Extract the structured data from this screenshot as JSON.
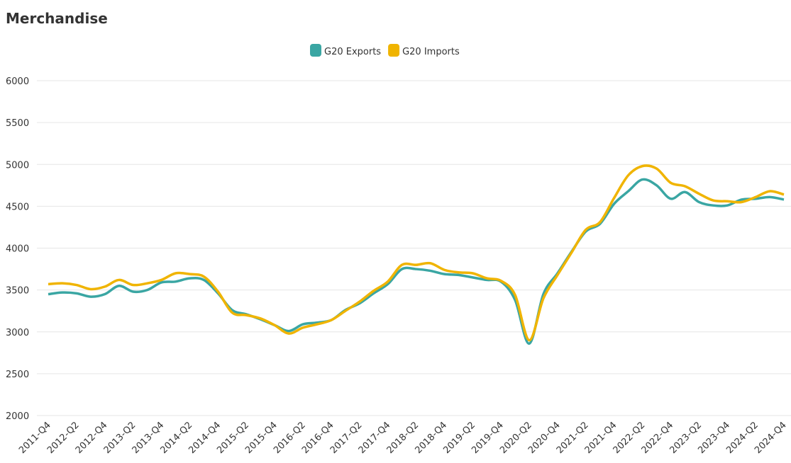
{
  "chart_data": {
    "type": "line",
    "title": "Merchandise",
    "categories": [
      "2011-Q4",
      null,
      "2012-Q2",
      null,
      "2012-Q4",
      null,
      "2013-Q2",
      null,
      "2013-Q4",
      null,
      "2014-Q2",
      null,
      "2014-Q4",
      null,
      "2015-Q2",
      null,
      "2015-Q4",
      null,
      "2016-Q2",
      null,
      "2016-Q4",
      null,
      "2017-Q2",
      null,
      "2017-Q4",
      null,
      "2018-Q2",
      null,
      "2018-Q4",
      null,
      "2019-Q2",
      null,
      "2019-Q4",
      null,
      "2020-Q2",
      null,
      "2020-Q4",
      null,
      "2021-Q2",
      null,
      "2021-Q4",
      null,
      "2022-Q2",
      null,
      "2022-Q4",
      null,
      "2023-Q2",
      null,
      "2023-Q4",
      null,
      "2024-Q2",
      null,
      "2024-Q4"
    ],
    "series": [
      {
        "name": "G20 Exports",
        "color": "#3aa6a3",
        "values": [
          3450,
          3470,
          3460,
          3420,
          3450,
          3550,
          3480,
          3500,
          3590,
          3600,
          3640,
          3620,
          3460,
          3260,
          3210,
          3150,
          3080,
          3010,
          3090,
          3110,
          3140,
          3260,
          3340,
          3460,
          3570,
          3750,
          3750,
          3730,
          3690,
          3680,
          3650,
          3620,
          3600,
          3380,
          2860,
          3450,
          3700,
          3960,
          4200,
          4290,
          4530,
          4680,
          4820,
          4750,
          4590,
          4670,
          4550,
          4510,
          4510,
          4580,
          4590,
          4610,
          4580
        ]
      },
      {
        "name": "G20 Imports",
        "color": "#f0b400",
        "values": [
          3570,
          3580,
          3560,
          3510,
          3540,
          3620,
          3560,
          3580,
          3620,
          3700,
          3690,
          3660,
          3480,
          3230,
          3200,
          3160,
          3080,
          2980,
          3050,
          3090,
          3140,
          3250,
          3360,
          3490,
          3600,
          3800,
          3800,
          3820,
          3740,
          3710,
          3700,
          3640,
          3610,
          3440,
          2900,
          3400,
          3680,
          3950,
          4220,
          4310,
          4600,
          4870,
          4980,
          4950,
          4780,
          4740,
          4650,
          4570,
          4560,
          4550,
          4610,
          4680,
          4640
        ]
      }
    ],
    "ylim": [
      2000,
      6000
    ],
    "yticks": [
      2000,
      2500,
      3000,
      3500,
      4000,
      4500,
      5000,
      5500,
      6000
    ],
    "grid": true,
    "legend": "top"
  }
}
